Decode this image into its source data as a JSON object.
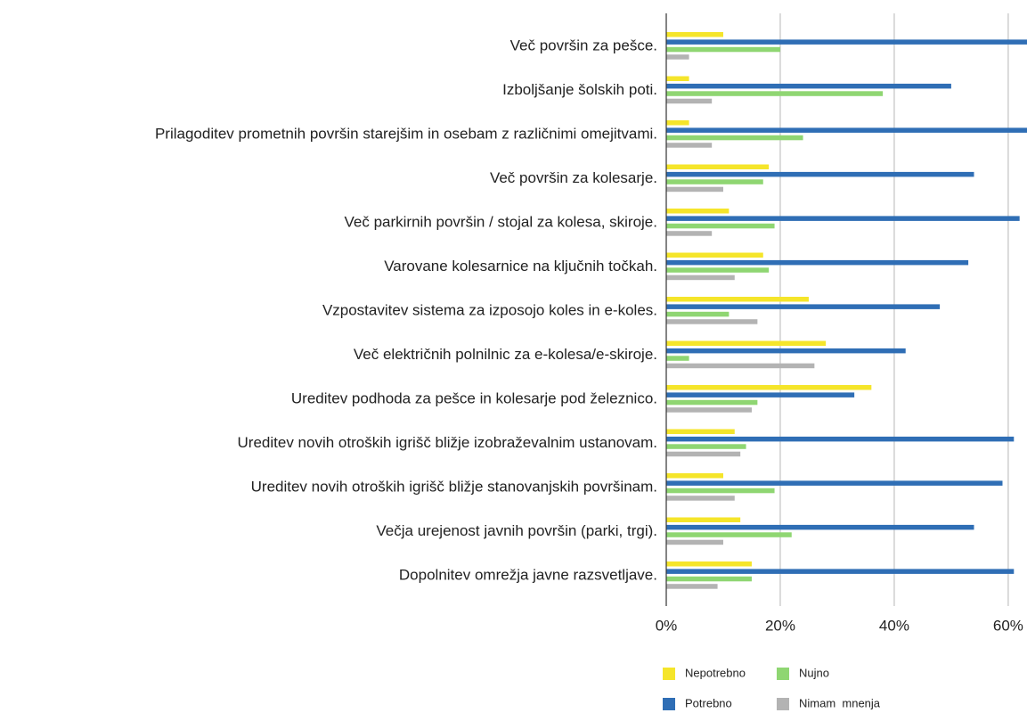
{
  "chart_data": {
    "type": "bar",
    "orientation": "horizontal",
    "categories": [
      "Več površin za pešce.",
      "Izboljšanje šolskih poti.",
      "Prilagoditev prometnih površin starejšim in osebam z različnimi omejitvami.",
      "Več površin za kolesarje.",
      "Več parkirnih površin / stojal za kolesa, skiroje.",
      "Varovane kolesarnice na ključnih točkah.",
      "Vzpostavitev sistema za izposojo koles in e-koles.",
      "Več električnih polnilnic za e-kolesa/e-skiroje.",
      "Ureditev podhoda za pešce in kolesarje pod železnico.",
      "Ureditev novih otroških igrišč bližje izobraževalnim ustanovam.",
      "Ureditev novih otroških igrišč bližje stanovanjskih površinam.",
      "Večja urejenost javnih površin (parki, trgi).",
      "Dopolnitev omrežja javne razsvetljave."
    ],
    "series": [
      {
        "name": "Nepotrebno",
        "color": "#f5e52a",
        "values": [
          10,
          4,
          4,
          18,
          11,
          17,
          25,
          28,
          36,
          12,
          10,
          13,
          15
        ]
      },
      {
        "name": "Potrebno",
        "color": "#2f6eb5",
        "values": [
          64,
          50,
          64,
          54,
          62,
          53,
          48,
          42,
          33,
          61,
          59,
          54,
          61
        ]
      },
      {
        "name": "Nujno",
        "color": "#8fd672",
        "values": [
          20,
          38,
          24,
          17,
          19,
          18,
          11,
          4,
          16,
          14,
          19,
          22,
          15
        ]
      },
      {
        "name": "Nimam  mnenja",
        "color": "#b3b3b3",
        "values": [
          4,
          8,
          8,
          10,
          8,
          12,
          16,
          26,
          15,
          13,
          12,
          10,
          9
        ]
      }
    ],
    "xlim": [
      0,
      63.3
    ],
    "xticks": [
      {
        "value": 0,
        "label": "0%"
      },
      {
        "value": 20,
        "label": "20%"
      },
      {
        "value": 40,
        "label": "40%"
      },
      {
        "value": 60,
        "label": "60%"
      }
    ],
    "grid": true
  }
}
